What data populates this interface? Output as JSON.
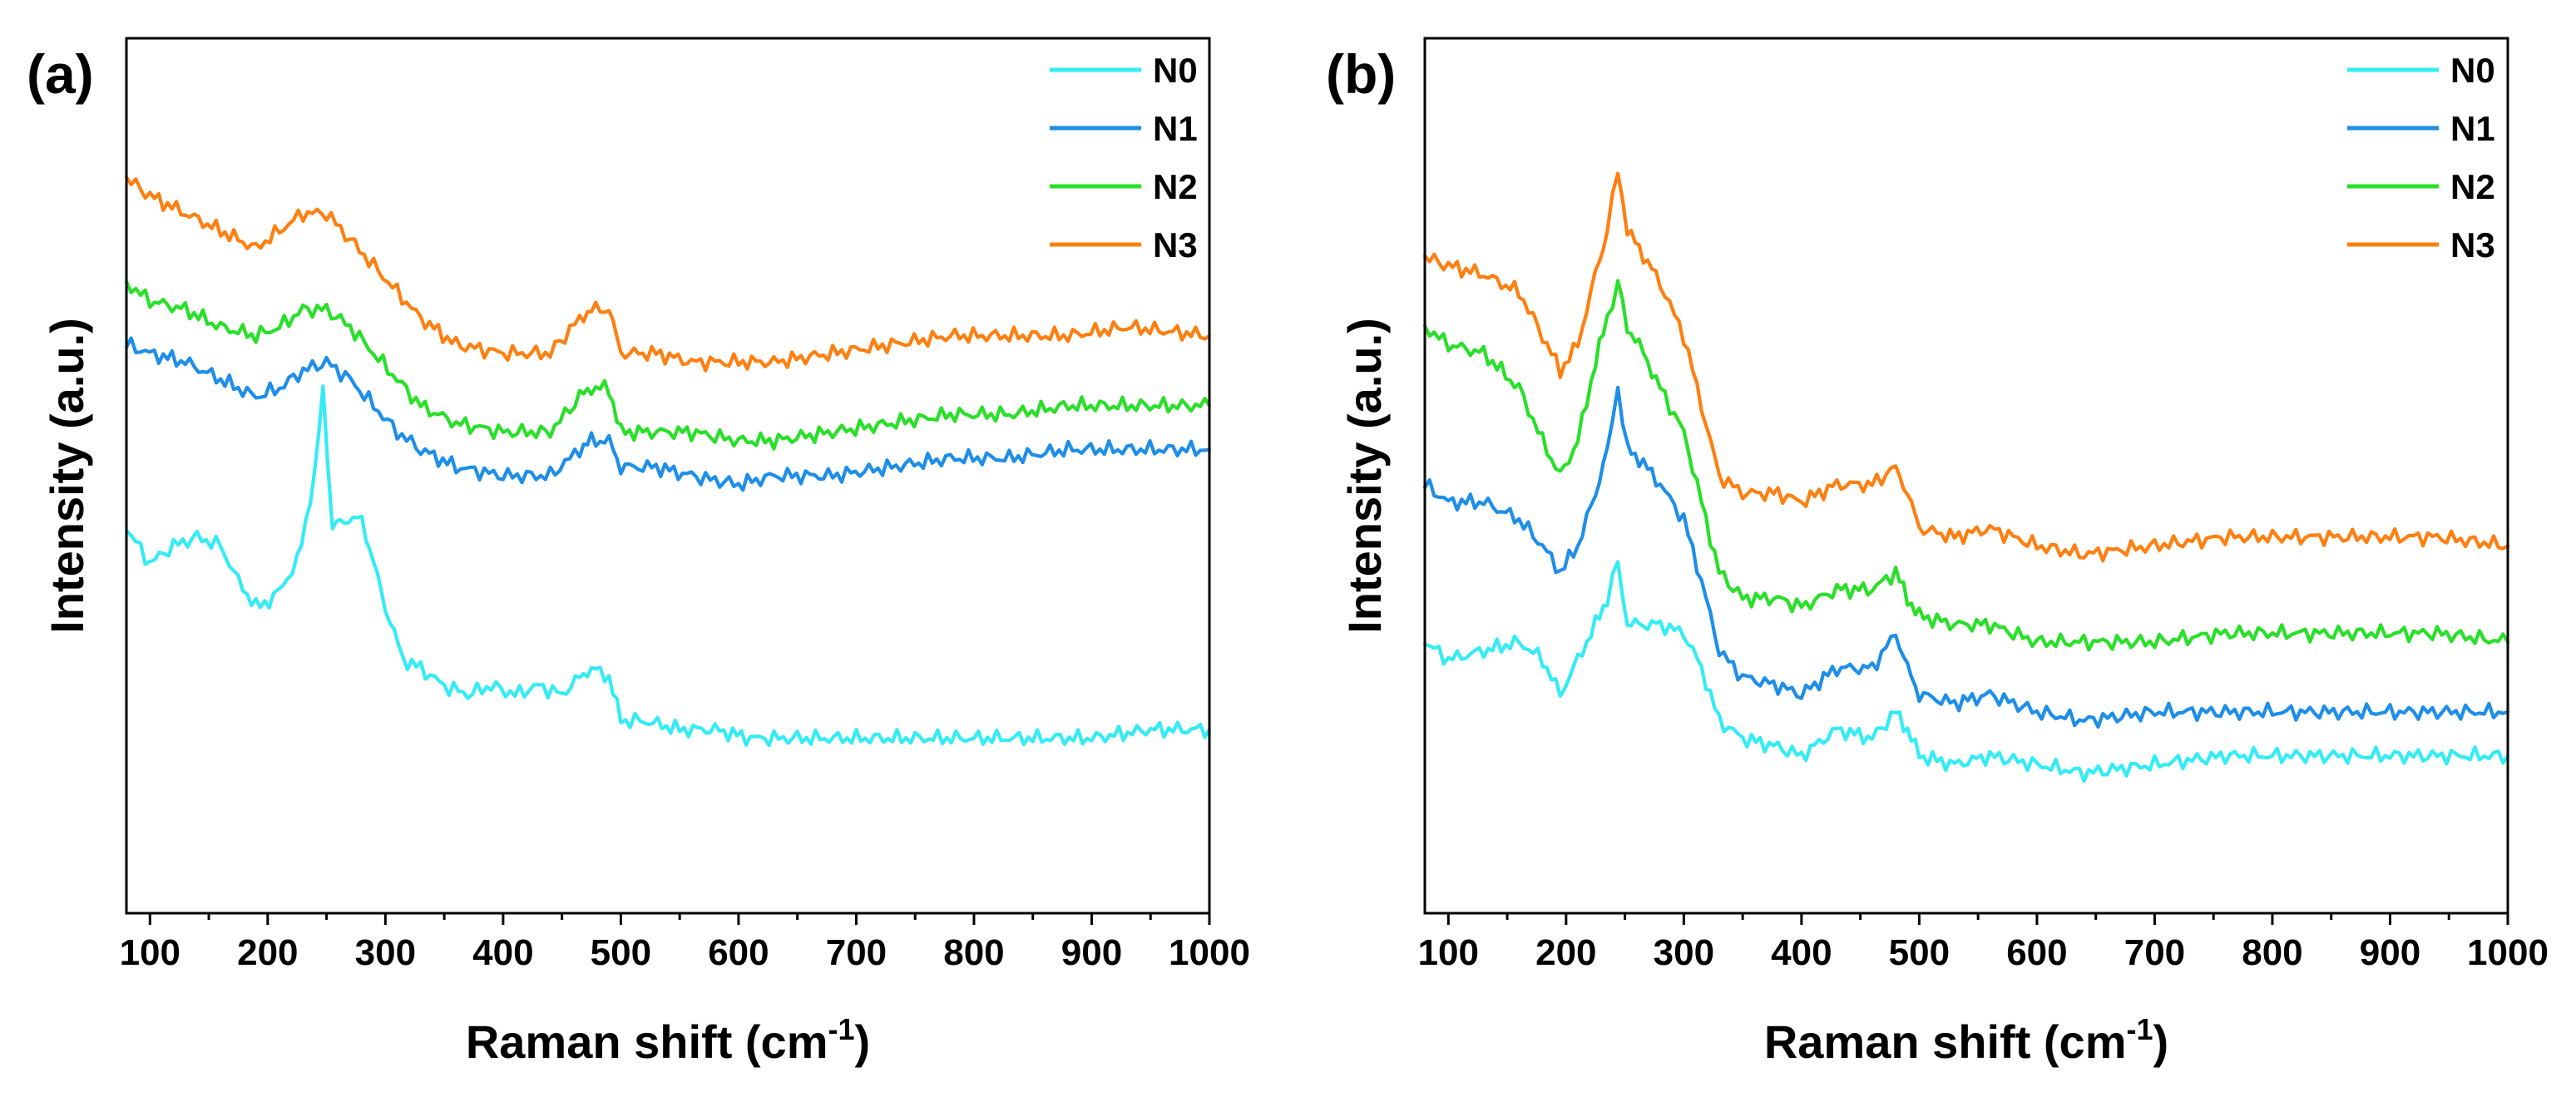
{
  "chart_data": [
    {
      "type": "line",
      "panel_label": "(a)",
      "xlabel": "Raman shift (cm",
      "xlabel_sup": "-1",
      "xlabel_close": ")",
      "ylabel": "Intensity (a.u.)",
      "xlim": [
        80,
        1000
      ],
      "xticks": [
        100,
        200,
        300,
        400,
        500,
        600,
        700,
        800,
        900,
        1000
      ],
      "ylim": [
        0,
        100
      ],
      "legend_position": "top-right",
      "series": [
        {
          "name": "N0",
          "color": "#33ecf5",
          "x": [
            80,
            100,
            120,
            140,
            160,
            175,
            190,
            205,
            225,
            240,
            247,
            255,
            265,
            280,
            290,
            300,
            315,
            330,
            350,
            370,
            390,
            410,
            430,
            450,
            465,
            475,
            490,
            500,
            520,
            550,
            580,
            610,
            650,
            700,
            750,
            800,
            850,
            900,
            950,
            1000
          ],
          "y": [
            44,
            40,
            42,
            43,
            42,
            38,
            35,
            36,
            40,
            50,
            60,
            44,
            45,
            45,
            40,
            35,
            29,
            28,
            26,
            25,
            26,
            25,
            26,
            25,
            27,
            28,
            27,
            22,
            22,
            21,
            21,
            20,
            20,
            20,
            20,
            20,
            20,
            20,
            21,
            21
          ]
        },
        {
          "name": "N1",
          "color": "#1e8ee8",
          "x": [
            80,
            100,
            130,
            160,
            190,
            210,
            230,
            250,
            270,
            290,
            310,
            330,
            360,
            400,
            440,
            465,
            475,
            490,
            500,
            530,
            560,
            600,
            630,
            680,
            730,
            780,
            830,
            880,
            930,
            1000
          ],
          "y": [
            65,
            64,
            63,
            61,
            59,
            60,
            62,
            63,
            61,
            58,
            55,
            53,
            51,
            50,
            50,
            53,
            54,
            54,
            51,
            51,
            50,
            49,
            50,
            50,
            51,
            52,
            52,
            53,
            53,
            53
          ]
        },
        {
          "name": "N2",
          "color": "#28e028",
          "x": [
            80,
            100,
            130,
            160,
            190,
            210,
            230,
            250,
            270,
            290,
            310,
            330,
            360,
            400,
            440,
            465,
            475,
            490,
            500,
            530,
            560,
            600,
            630,
            680,
            730,
            780,
            830,
            880,
            930,
            1000
          ],
          "y": [
            72,
            70,
            69,
            67,
            66,
            67,
            69,
            69,
            67,
            64,
            61,
            58,
            56,
            55,
            55,
            59,
            60,
            60,
            55,
            55,
            55,
            54,
            54,
            55,
            56,
            57,
            57,
            58,
            58,
            58
          ]
        },
        {
          "name": "N3",
          "color": "#ff7f10",
          "x": [
            80,
            100,
            130,
            160,
            190,
            210,
            230,
            250,
            270,
            290,
            310,
            330,
            360,
            400,
            440,
            465,
            475,
            490,
            500,
            530,
            560,
            600,
            630,
            680,
            730,
            780,
            830,
            880,
            930,
            1000
          ],
          "y": [
            84,
            82,
            80,
            78,
            76,
            78,
            80,
            80,
            77,
            74,
            71,
            68,
            65,
            64,
            64,
            68,
            69,
            69,
            64,
            64,
            63,
            63,
            63,
            64,
            65,
            66,
            66,
            66,
            67,
            66
          ]
        }
      ]
    },
    {
      "type": "line",
      "panel_label": "(b)",
      "xlabel": "Raman shift (cm",
      "xlabel_sup": "-1",
      "xlabel_close": ")",
      "ylabel": "Intensity (a.u.)",
      "xlim": [
        80,
        1000
      ],
      "xticks": [
        100,
        200,
        300,
        400,
        500,
        600,
        700,
        800,
        900,
        1000
      ],
      "ylim": [
        0,
        100
      ],
      "legend_position": "top-right",
      "series": [
        {
          "name": "N0",
          "color": "#33ecf5",
          "x": [
            80,
            100,
            130,
            160,
            180,
            195,
            210,
            225,
            235,
            244,
            252,
            262,
            280,
            300,
            315,
            330,
            350,
            380,
            400,
            430,
            460,
            480,
            490,
            500,
            530,
            560,
            600,
            640,
            700,
            760,
            820,
            880,
            940,
            1000
          ],
          "y": [
            31,
            29,
            30,
            31,
            29,
            25,
            29,
            33,
            36,
            40,
            33,
            33,
            33,
            32,
            28,
            22,
            20,
            19,
            18,
            21,
            20,
            23,
            21,
            18,
            17,
            18,
            17,
            16,
            17,
            18,
            18,
            18,
            18,
            18
          ]
        },
        {
          "name": "N1",
          "color": "#1e8ee8",
          "x": [
            80,
            100,
            130,
            160,
            180,
            195,
            210,
            225,
            235,
            244,
            252,
            262,
            280,
            300,
            315,
            330,
            350,
            380,
            400,
            430,
            460,
            480,
            490,
            500,
            530,
            560,
            600,
            640,
            700,
            760,
            820,
            880,
            940,
            1000
          ],
          "y": [
            49,
            47,
            47,
            45,
            42,
            39,
            42,
            48,
            53,
            60,
            53,
            52,
            49,
            45,
            38,
            30,
            27,
            26,
            25,
            28,
            28,
            32,
            28,
            25,
            24,
            25,
            23,
            22,
            23,
            23,
            23,
            23,
            23,
            23
          ]
        },
        {
          "name": "N2",
          "color": "#28e028",
          "x": [
            80,
            100,
            130,
            160,
            180,
            195,
            210,
            225,
            235,
            244,
            252,
            262,
            280,
            300,
            315,
            330,
            350,
            380,
            400,
            430,
            460,
            480,
            490,
            500,
            530,
            560,
            600,
            640,
            700,
            760,
            820,
            880,
            940,
            1000
          ],
          "y": [
            67,
            65,
            64,
            60,
            54,
            50,
            54,
            63,
            68,
            72,
            67,
            65,
            60,
            55,
            47,
            39,
            36,
            36,
            35,
            37,
            37,
            39,
            36,
            34,
            33,
            33,
            31,
            31,
            31,
            32,
            32,
            32,
            32,
            31
          ]
        },
        {
          "name": "N3",
          "color": "#ff7f10",
          "x": [
            80,
            100,
            130,
            160,
            180,
            195,
            210,
            225,
            235,
            244,
            252,
            262,
            280,
            300,
            315,
            330,
            350,
            380,
            400,
            430,
            460,
            480,
            490,
            500,
            530,
            560,
            600,
            640,
            700,
            760,
            820,
            880,
            940,
            1000
          ],
          "y": [
            75,
            74,
            73,
            71,
            66,
            62,
            65,
            73,
            78,
            85,
            78,
            76,
            72,
            66,
            58,
            50,
            48,
            48,
            47,
            49,
            49,
            51,
            48,
            44,
            43,
            44,
            42,
            41,
            42,
            43,
            43,
            43,
            43,
            42
          ]
        }
      ]
    }
  ]
}
